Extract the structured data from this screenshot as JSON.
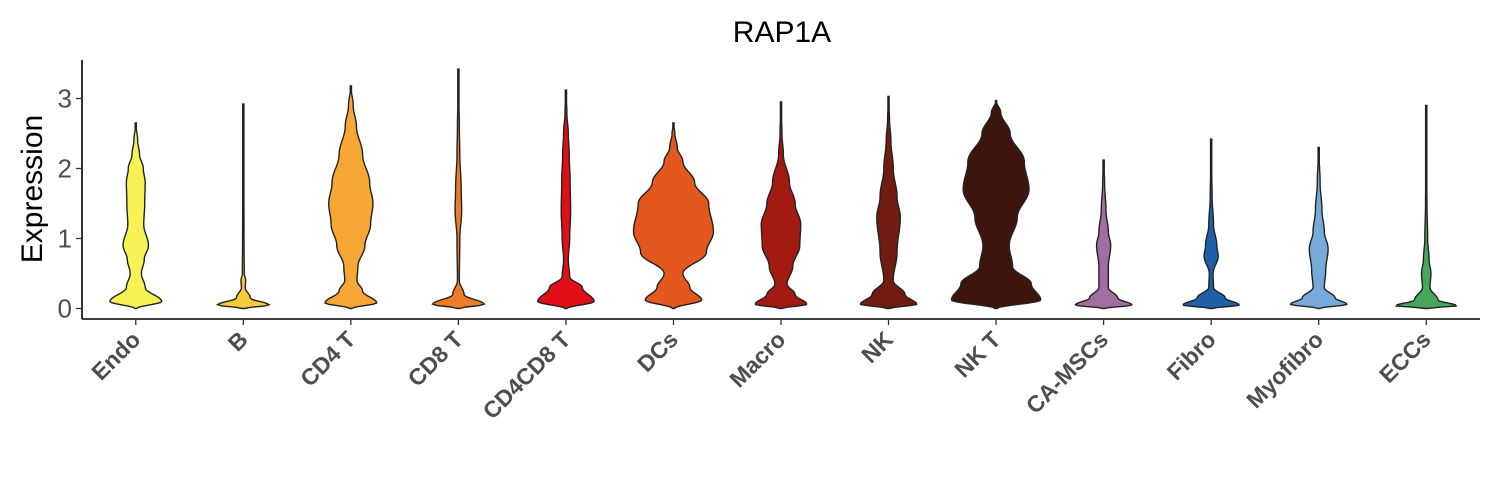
{
  "chart_data": {
    "type": "violin",
    "title": "RAP1A",
    "xlabel": "",
    "ylabel": "Expression",
    "ylim": [
      -0.15,
      3.55
    ],
    "yticks": [
      0,
      1,
      2,
      3
    ],
    "grid": false,
    "legend": "none",
    "categories": [
      "Endo",
      "B",
      "CD4 T",
      "CD8 T",
      "CD4CD8 T",
      "DCs",
      "Macro",
      "NK",
      "NK T",
      "CA-MSCs",
      "Fibro",
      "Myofibro",
      "ECCs"
    ],
    "colors": [
      "#F9F256",
      "#F9CD3A",
      "#F7A734",
      "#EE7D27",
      "#E20E16",
      "#E4571D",
      "#A31A12",
      "#721B10",
      "#3E150C",
      "#A26EA0",
      "#1F61A9",
      "#76AADB",
      "#46A85C"
    ],
    "max_values": [
      2.65,
      2.92,
      3.18,
      3.42,
      3.12,
      2.65,
      2.95,
      3.03,
      2.97,
      2.12,
      2.42,
      2.3,
      2.9
    ],
    "density_profiles": [
      [
        [
          0,
          0.02
        ],
        [
          0.1,
          0.55
        ],
        [
          0.3,
          0.2
        ],
        [
          0.5,
          0.12
        ],
        [
          0.7,
          0.18
        ],
        [
          0.9,
          0.27
        ],
        [
          1.2,
          0.17
        ],
        [
          1.5,
          0.19
        ],
        [
          1.8,
          0.2
        ],
        [
          2.0,
          0.16
        ],
        [
          2.2,
          0.08
        ],
        [
          2.4,
          0.04
        ],
        [
          2.65,
          0.0
        ]
      ],
      [
        [
          0,
          0.02
        ],
        [
          0.05,
          0.55
        ],
        [
          0.15,
          0.15
        ],
        [
          0.3,
          0.04
        ],
        [
          0.4,
          0.05
        ],
        [
          0.5,
          0.02
        ],
        [
          1.0,
          0.015
        ],
        [
          2.0,
          0.01
        ],
        [
          2.92,
          0.0
        ]
      ],
      [
        [
          0,
          0.02
        ],
        [
          0.08,
          0.55
        ],
        [
          0.25,
          0.25
        ],
        [
          0.4,
          0.13
        ],
        [
          0.6,
          0.15
        ],
        [
          0.9,
          0.3
        ],
        [
          1.2,
          0.42
        ],
        [
          1.5,
          0.47
        ],
        [
          1.8,
          0.4
        ],
        [
          2.2,
          0.25
        ],
        [
          2.6,
          0.12
        ],
        [
          2.9,
          0.05
        ],
        [
          3.18,
          0.0
        ]
      ],
      [
        [
          0,
          0.02
        ],
        [
          0.06,
          0.55
        ],
        [
          0.2,
          0.12
        ],
        [
          0.4,
          0.02
        ],
        [
          1.0,
          0.03
        ],
        [
          1.4,
          0.07
        ],
        [
          1.7,
          0.06
        ],
        [
          2.2,
          0.03
        ],
        [
          2.6,
          0.02
        ],
        [
          3.0,
          0.01
        ],
        [
          3.42,
          0.0
        ]
      ],
      [
        [
          0,
          0.02
        ],
        [
          0.1,
          0.6
        ],
        [
          0.3,
          0.35
        ],
        [
          0.45,
          0.08
        ],
        [
          0.7,
          0.05
        ],
        [
          1.0,
          0.08
        ],
        [
          1.4,
          0.1
        ],
        [
          1.8,
          0.09
        ],
        [
          2.2,
          0.07
        ],
        [
          2.5,
          0.05
        ],
        [
          2.8,
          0.02
        ],
        [
          3.12,
          0.0
        ]
      ],
      [
        [
          0,
          0.02
        ],
        [
          0.12,
          0.6
        ],
        [
          0.3,
          0.35
        ],
        [
          0.5,
          0.2
        ],
        [
          0.8,
          0.7
        ],
        [
          1.1,
          0.85
        ],
        [
          1.5,
          0.75
        ],
        [
          1.8,
          0.45
        ],
        [
          2.1,
          0.2
        ],
        [
          2.3,
          0.08
        ],
        [
          2.5,
          0.03
        ],
        [
          2.65,
          0.0
        ]
      ],
      [
        [
          0,
          0.02
        ],
        [
          0.06,
          0.55
        ],
        [
          0.2,
          0.3
        ],
        [
          0.35,
          0.13
        ],
        [
          0.6,
          0.25
        ],
        [
          0.9,
          0.4
        ],
        [
          1.2,
          0.42
        ],
        [
          1.5,
          0.3
        ],
        [
          1.8,
          0.18
        ],
        [
          2.2,
          0.05
        ],
        [
          2.5,
          0.02
        ],
        [
          2.95,
          0.0
        ]
      ],
      [
        [
          0,
          0.02
        ],
        [
          0.06,
          0.6
        ],
        [
          0.2,
          0.35
        ],
        [
          0.4,
          0.1
        ],
        [
          0.8,
          0.18
        ],
        [
          1.3,
          0.25
        ],
        [
          1.6,
          0.18
        ],
        [
          2.0,
          0.1
        ],
        [
          2.4,
          0.05
        ],
        [
          2.7,
          0.02
        ],
        [
          3.03,
          0.0
        ]
      ],
      [
        [
          0,
          0.02
        ],
        [
          0.12,
          0.95
        ],
        [
          0.35,
          0.75
        ],
        [
          0.6,
          0.35
        ],
        [
          0.9,
          0.28
        ],
        [
          1.3,
          0.45
        ],
        [
          1.7,
          0.7
        ],
        [
          2.1,
          0.6
        ],
        [
          2.5,
          0.3
        ],
        [
          2.8,
          0.1
        ],
        [
          2.97,
          0.0
        ]
      ],
      [
        [
          0,
          0.02
        ],
        [
          0.05,
          0.6
        ],
        [
          0.15,
          0.3
        ],
        [
          0.3,
          0.1
        ],
        [
          0.6,
          0.1
        ],
        [
          0.9,
          0.15
        ],
        [
          1.1,
          0.1
        ],
        [
          1.4,
          0.05
        ],
        [
          1.8,
          0.02
        ],
        [
          2.12,
          0.0
        ]
      ],
      [
        [
          0,
          0.02
        ],
        [
          0.05,
          0.6
        ],
        [
          0.15,
          0.3
        ],
        [
          0.3,
          0.05
        ],
        [
          0.5,
          0.04
        ],
        [
          0.75,
          0.15
        ],
        [
          0.9,
          0.12
        ],
        [
          1.2,
          0.05
        ],
        [
          1.6,
          0.02
        ],
        [
          2.0,
          0.01
        ],
        [
          2.42,
          0.0
        ]
      ],
      [
        [
          0,
          0.02
        ],
        [
          0.06,
          0.6
        ],
        [
          0.15,
          0.35
        ],
        [
          0.3,
          0.12
        ],
        [
          0.55,
          0.15
        ],
        [
          0.85,
          0.2
        ],
        [
          1.1,
          0.12
        ],
        [
          1.4,
          0.07
        ],
        [
          1.8,
          0.03
        ],
        [
          2.3,
          0.0
        ]
      ],
      [
        [
          0,
          0.02
        ],
        [
          0.04,
          0.65
        ],
        [
          0.12,
          0.25
        ],
        [
          0.3,
          0.08
        ],
        [
          0.5,
          0.1
        ],
        [
          0.7,
          0.06
        ],
        [
          1.0,
          0.03
        ],
        [
          1.5,
          0.015
        ],
        [
          2.0,
          0.008
        ],
        [
          2.9,
          0.0
        ]
      ]
    ]
  }
}
